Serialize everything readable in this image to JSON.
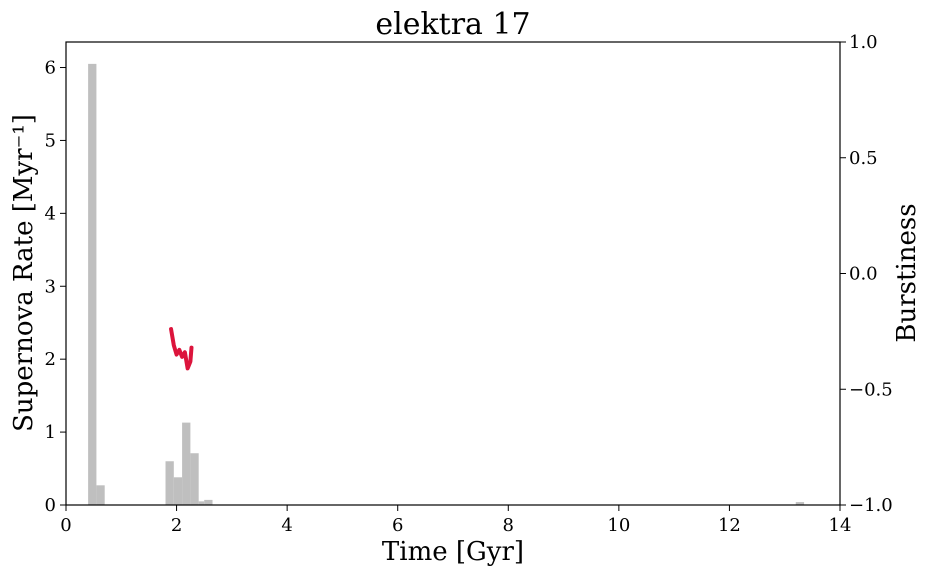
{
  "chart_data": {
    "type": "bar",
    "title": "elektra 17",
    "xlabel": "Time [Gyr]",
    "ylabel": "Supernova Rate [Myr⁻¹]",
    "y2label": "Burstiness",
    "xlim": [
      0,
      14
    ],
    "ylim": [
      0,
      6.35
    ],
    "y2lim": [
      -1.0,
      1.0
    ],
    "xticks": [
      "0",
      "2",
      "4",
      "6",
      "8",
      "10",
      "12",
      "14"
    ],
    "yticks": [
      "0",
      "1",
      "2",
      "3",
      "4",
      "5",
      "6"
    ],
    "y2ticks": [
      "−1.0",
      "−0.5",
      "0.0",
      "0.5",
      "1.0"
    ],
    "grid": false,
    "histogram": {
      "color": "#bfbfbf",
      "bins": [
        {
          "x0": 0.4,
          "x1": 0.55,
          "value": 6.05
        },
        {
          "x0": 0.55,
          "x1": 0.7,
          "value": 0.27
        },
        {
          "x0": 1.8,
          "x1": 1.95,
          "value": 0.6
        },
        {
          "x0": 1.95,
          "x1": 2.1,
          "value": 0.38
        },
        {
          "x0": 2.1,
          "x1": 2.25,
          "value": 1.13
        },
        {
          "x0": 2.25,
          "x1": 2.4,
          "value": 0.71
        },
        {
          "x0": 2.4,
          "x1": 2.5,
          "value": 0.05
        },
        {
          "x0": 2.5,
          "x1": 2.65,
          "value": 0.07
        },
        {
          "x0": 13.2,
          "x1": 13.35,
          "value": 0.04
        }
      ]
    },
    "burstiness_line": {
      "color": "#dc143c",
      "points": [
        [
          1.9,
          -0.24
        ],
        [
          1.95,
          -0.31
        ],
        [
          2.0,
          -0.35
        ],
        [
          2.05,
          -0.33
        ],
        [
          2.1,
          -0.36
        ],
        [
          2.15,
          -0.34
        ],
        [
          2.2,
          -0.41
        ],
        [
          2.25,
          -0.38
        ],
        [
          2.27,
          -0.32
        ]
      ]
    }
  }
}
